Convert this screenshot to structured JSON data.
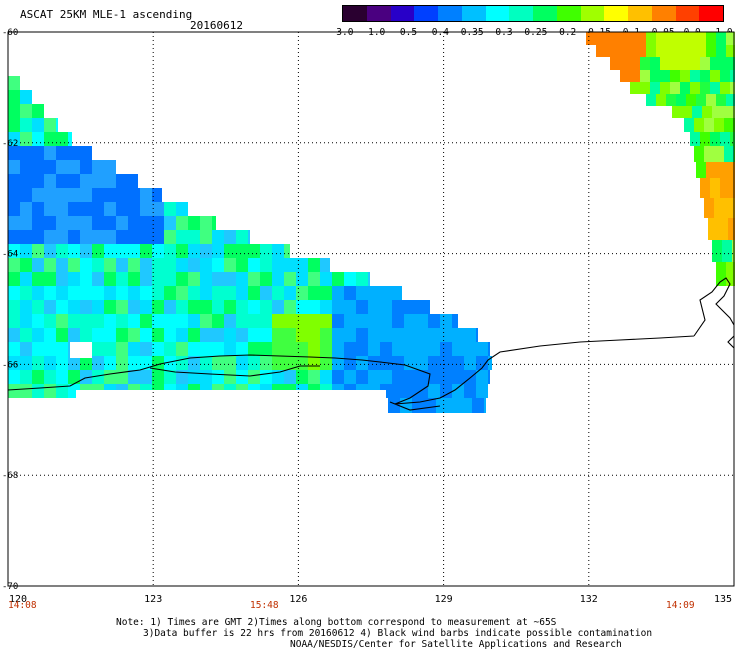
{
  "header": {
    "title": "ASCAT 25KM MLE-1 ascending",
    "date": "20160612"
  },
  "colorbar": {
    "labels": [
      "-3.0",
      "-1.0",
      "-0.5",
      "-0.4",
      "-0.35",
      "-0.3",
      "-0.25",
      "-0.2",
      "-0.15",
      "-0.1",
      "-0.05",
      "0.0",
      "1.0"
    ],
    "colors": [
      "#2a0030",
      "#4a0080",
      "#2800c8",
      "#0040ff",
      "#0080ff",
      "#00c0ff",
      "#00ffff",
      "#00ffc0",
      "#00ff60",
      "#40ff00",
      "#a0ff00",
      "#ffff00",
      "#ffc000",
      "#ff8000",
      "#ff4000",
      "#ff0000"
    ]
  },
  "axes": {
    "x_ticks": [
      "120",
      "123",
      "126",
      "129",
      "132",
      "135"
    ],
    "y_ticks": [
      "-60",
      "-62",
      "-64",
      "-66",
      "-68",
      "-70"
    ],
    "time_labels": [
      "14:08",
      "15:48",
      "14:09"
    ]
  },
  "colors": {
    "time_label": "#c03000",
    "coastline": "#000000",
    "grid": "#000000"
  },
  "notes": {
    "line1": "Note: 1) Times are GMT 2)Times along bottom correspond to measurement at ~65S",
    "line2": "3)Data buffer is 22 hrs from 20160612 4) Black wind barbs indicate possible contamination",
    "line3": "NOAA/NESDIS/Center for Satellite Applications and Research"
  }
}
